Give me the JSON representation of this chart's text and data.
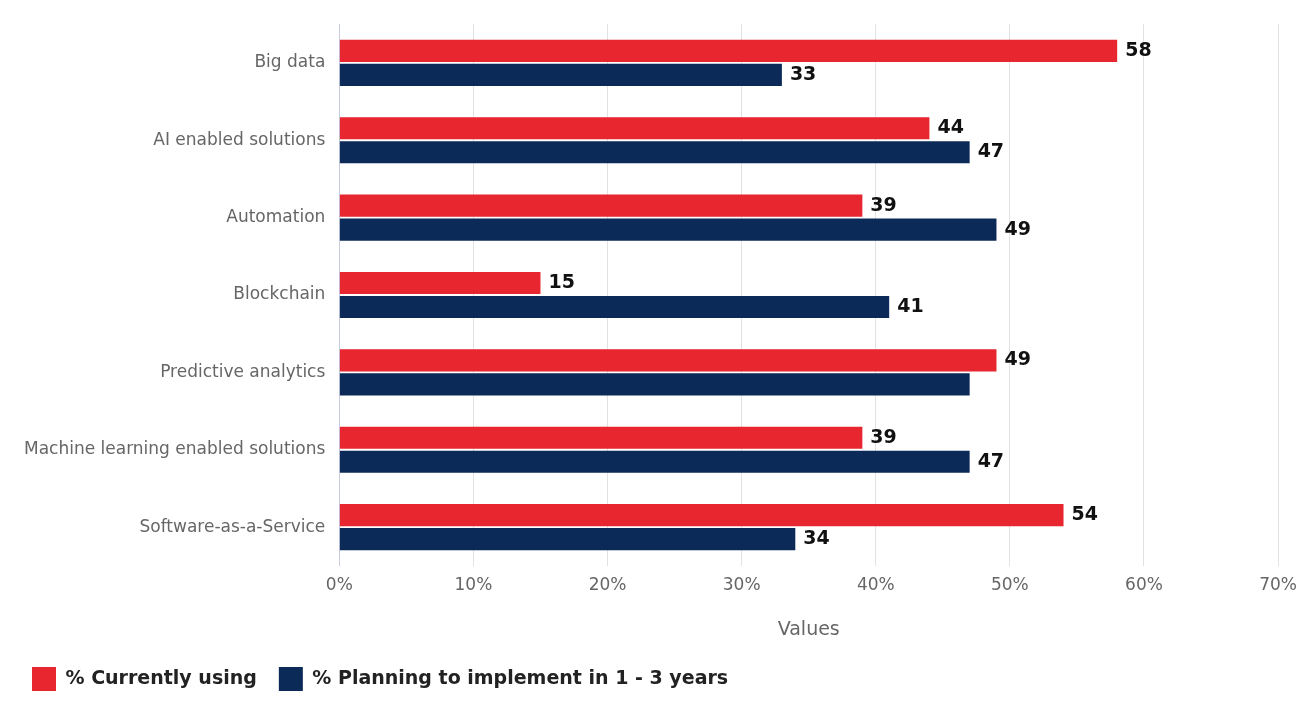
{
  "chart_data": {
    "type": "bar",
    "orientation": "horizontal",
    "categories": [
      "Big data",
      "AI enabled solutions",
      "Automation",
      "Blockchain",
      "Predictive analytics",
      "Machine learning enabled solutions",
      "Software-as-a-Service"
    ],
    "series": [
      {
        "name": "% Currently using",
        "color": "#e8262f",
        "values": [
          58,
          44,
          39,
          15,
          49,
          39,
          54
        ],
        "value_labels": [
          "58",
          "44",
          "39",
          "15",
          "49",
          "39",
          "54"
        ]
      },
      {
        "name": "% Planning to implement in 1 - 3 years",
        "color": "#0b2a58",
        "values": [
          33,
          47,
          49,
          41,
          47,
          47,
          34
        ],
        "value_labels": [
          "33",
          "47",
          "49",
          "41",
          null,
          "47",
          "34"
        ]
      }
    ],
    "xlabel": "Values",
    "xlim": [
      0,
      70
    ],
    "xticks": [
      {
        "value": 0,
        "label": "0%"
      },
      {
        "value": 10,
        "label": "10%"
      },
      {
        "value": 20,
        "label": "20%"
      },
      {
        "value": 30,
        "label": "30%"
      },
      {
        "value": 40,
        "label": "40%"
      },
      {
        "value": 50,
        "label": "50%"
      },
      {
        "value": 60,
        "label": "60%"
      },
      {
        "value": 70,
        "label": "70%"
      }
    ],
    "grid": "x",
    "legend": "bottom left"
  }
}
